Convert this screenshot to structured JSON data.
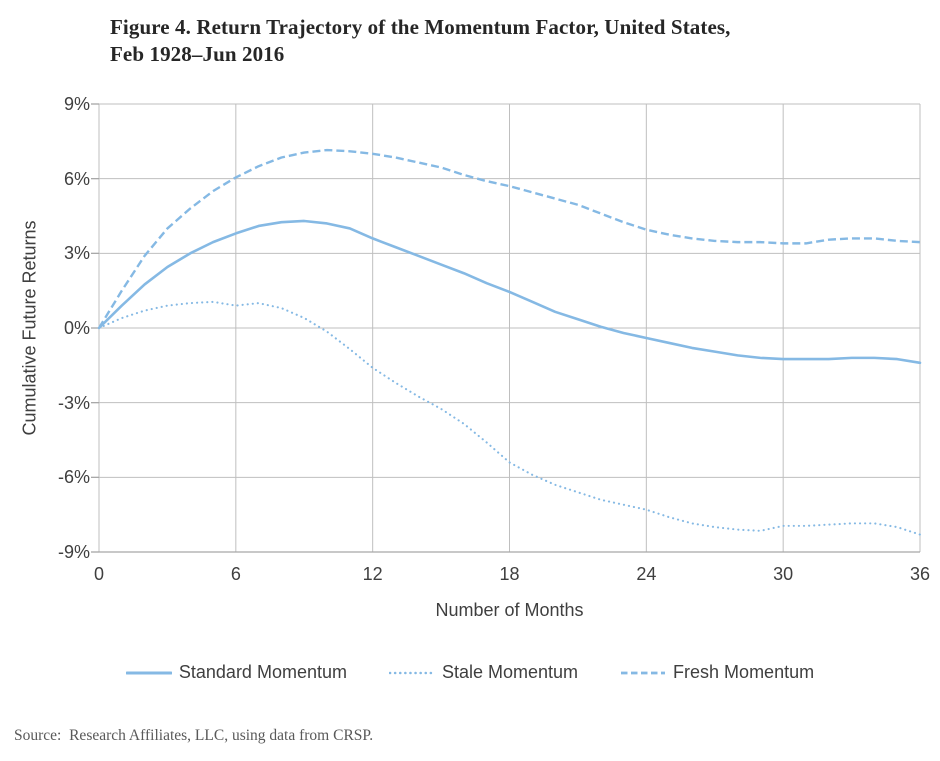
{
  "header": {
    "title_line1": "Figure 4. Return Trajectory of the Momentum Factor, United States,",
    "title_line2": "Feb 1928–Jun 2016"
  },
  "source_note": "Source:  Research Affiliates, LLC, using data from CRSP.",
  "colors": {
    "line_blue": "#85B9E4",
    "gridline": "#BFBFBF",
    "axis": "#A6A6A6",
    "tick_text": "#3F3F3F",
    "title_text": "#262626",
    "source_text": "#595959"
  },
  "chart_data": {
    "type": "line",
    "title": "Figure 4. Return Trajectory of the Momentum Factor, United States, Feb 1928–Jun 2016",
    "xlabel": "Number of Months",
    "ylabel": "Cumulative Future Returns",
    "xlim": [
      0,
      36
    ],
    "ylim": [
      -9,
      9
    ],
    "xticks": [
      0,
      6,
      12,
      18,
      24,
      30,
      36
    ],
    "yticks": [
      9,
      6,
      3,
      0,
      -3,
      -6,
      -9
    ],
    "ytick_labels": [
      "9%",
      "6%",
      "3%",
      "0%",
      "-3%",
      "-6%",
      "-9%"
    ],
    "xtick_labels": [
      "0",
      "6",
      "12",
      "18",
      "24",
      "30",
      "36"
    ],
    "grid": true,
    "legend_position": "bottom",
    "x": [
      0,
      1,
      2,
      3,
      4,
      5,
      6,
      7,
      8,
      9,
      10,
      11,
      12,
      13,
      14,
      15,
      16,
      17,
      18,
      19,
      20,
      21,
      22,
      23,
      24,
      25,
      26,
      27,
      28,
      29,
      30,
      31,
      32,
      33,
      34,
      35,
      36
    ],
    "series": [
      {
        "name": "Standard Momentum",
        "line_style": "solid",
        "color": "#85B9E4",
        "values": [
          0,
          0.9,
          1.75,
          2.45,
          3.0,
          3.45,
          3.8,
          4.1,
          4.25,
          4.3,
          4.2,
          4.0,
          3.6,
          3.25,
          2.9,
          2.55,
          2.2,
          1.8,
          1.45,
          1.05,
          0.65,
          0.35,
          0.05,
          -0.2,
          -0.4,
          -0.6,
          -0.8,
          -0.95,
          -1.1,
          -1.2,
          -1.25,
          -1.25,
          -1.25,
          -1.2,
          -1.2,
          -1.25,
          -1.4
        ]
      },
      {
        "name": "Stale Momentum",
        "line_style": "dotted",
        "color": "#85B9E4",
        "values": [
          0,
          0.4,
          0.7,
          0.9,
          1.0,
          1.05,
          0.9,
          1.0,
          0.8,
          0.4,
          -0.15,
          -0.85,
          -1.6,
          -2.2,
          -2.75,
          -3.25,
          -3.85,
          -4.6,
          -5.4,
          -5.9,
          -6.3,
          -6.6,
          -6.9,
          -7.1,
          -7.3,
          -7.6,
          -7.85,
          -8.0,
          -8.1,
          -8.15,
          -7.95,
          -7.95,
          -7.9,
          -7.85,
          -7.85,
          -8.0,
          -8.3
        ]
      },
      {
        "name": "Fresh Momentum",
        "line_style": "dashed",
        "color": "#85B9E4",
        "values": [
          0,
          1.5,
          2.9,
          4.0,
          4.8,
          5.5,
          6.05,
          6.5,
          6.85,
          7.05,
          7.15,
          7.1,
          7.0,
          6.85,
          6.65,
          6.45,
          6.15,
          5.9,
          5.7,
          5.45,
          5.2,
          4.95,
          4.6,
          4.25,
          3.95,
          3.75,
          3.6,
          3.5,
          3.45,
          3.45,
          3.4,
          3.4,
          3.55,
          3.6,
          3.6,
          3.5,
          3.45
        ]
      }
    ]
  }
}
